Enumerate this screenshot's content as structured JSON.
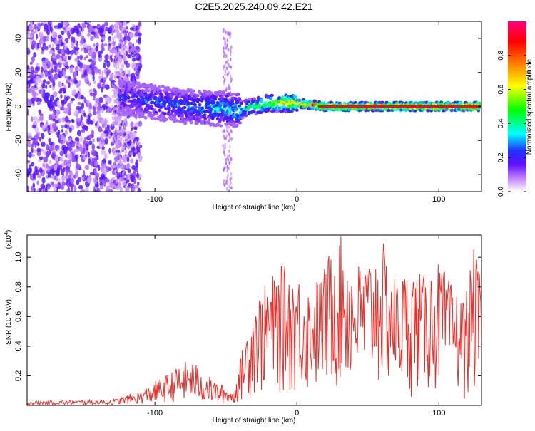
{
  "title": "C2E5.2025.240.09.42.E21",
  "chart_data": [
    {
      "type": "heatmap",
      "title": "C2E5.2025.240.09.42.E21",
      "xlabel": "Height of straight line (km)",
      "ylabel": "Frequency (Hz)",
      "xlim": [
        -190,
        130
      ],
      "ylim": [
        -50,
        50
      ],
      "xticks": [
        -100,
        0,
        100
      ],
      "yticks": [
        -40,
        -20,
        0,
        20,
        40
      ],
      "colorbar": {
        "label": "Normalized spectral amplitude",
        "range": [
          0,
          1
        ],
        "ticks": [
          "0.0",
          "0.2",
          "0.4",
          "0.6",
          "0.8"
        ],
        "tick_values": [
          0,
          0.2,
          0.4,
          0.6,
          0.8
        ],
        "colors": [
          "#ffffff",
          "#c080ff",
          "#6010ff",
          "#2030ff",
          "#00ffff",
          "#00ff00",
          "#ffff00",
          "#ff8000",
          "#ff0000",
          "#ff0080"
        ]
      },
      "ridge": {
        "description_points": [
          {
            "x": -120,
            "f": 5,
            "amp": 0.25
          },
          {
            "x": -80,
            "f": 0,
            "amp": 0.3
          },
          {
            "x": -40,
            "f": -2,
            "amp": 0.4
          },
          {
            "x": -20,
            "f": 2,
            "amp": 0.6
          },
          {
            "x": 0,
            "f": 2,
            "amp": 0.8
          },
          {
            "x": 20,
            "f": 0,
            "amp": 0.9
          },
          {
            "x": 130,
            "f": 0,
            "amp": 0.95
          }
        ]
      }
    },
    {
      "type": "line",
      "xlabel": "Height of straight line (km)",
      "ylabel": "SNR (10 * v/v)",
      "y_multiplier": "(x10",
      "y_multiplier_exp": "4",
      "y_multiplier_close": ")",
      "xlim": [
        -190,
        130
      ],
      "ylim": [
        0,
        1.15
      ],
      "xticks": [
        -100,
        0,
        100
      ],
      "yticks": [
        0.2,
        0.4,
        0.6,
        0.8,
        1.0
      ],
      "ytick_labels": [
        "0.2",
        "0.4",
        "0.6",
        "0.8",
        "1.0"
      ],
      "color": "#e8302a",
      "envelope": [
        {
          "x": -190,
          "y": 0.03
        },
        {
          "x": -130,
          "y": 0.04
        },
        {
          "x": -110,
          "y": 0.1
        },
        {
          "x": -90,
          "y": 0.22
        },
        {
          "x": -75,
          "y": 0.32
        },
        {
          "x": -60,
          "y": 0.18
        },
        {
          "x": -45,
          "y": 0.1
        },
        {
          "x": -38,
          "y": 0.4
        },
        {
          "x": -30,
          "y": 0.72
        },
        {
          "x": -20,
          "y": 0.85
        },
        {
          "x": -10,
          "y": 0.95
        },
        {
          "x": 0,
          "y": 0.9
        },
        {
          "x": 10,
          "y": 0.8
        },
        {
          "x": 20,
          "y": 0.95
        },
        {
          "x": 25,
          "y": 1.12
        },
        {
          "x": 32,
          "y": 1.15
        },
        {
          "x": 40,
          "y": 0.95
        },
        {
          "x": 50,
          "y": 1.0
        },
        {
          "x": 60,
          "y": 1.12
        },
        {
          "x": 70,
          "y": 0.85
        },
        {
          "x": 80,
          "y": 0.95
        },
        {
          "x": 90,
          "y": 0.88
        },
        {
          "x": 100,
          "y": 0.98
        },
        {
          "x": 110,
          "y": 0.8
        },
        {
          "x": 118,
          "y": 0.72
        },
        {
          "x": 125,
          "y": 1.08
        },
        {
          "x": 130,
          "y": 0.82
        }
      ]
    }
  ]
}
